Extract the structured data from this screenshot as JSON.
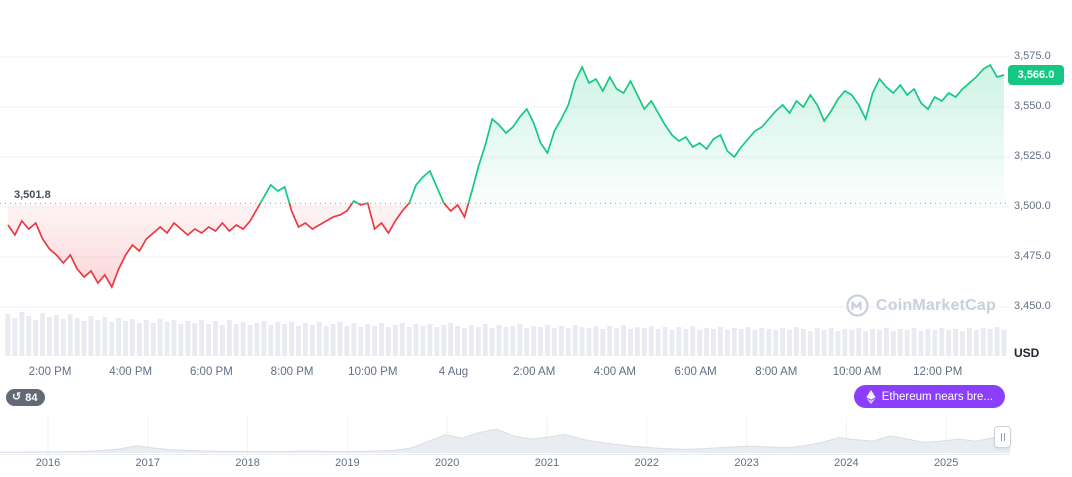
{
  "branding": {
    "watermark": "CoinMarketCap"
  },
  "badges": {
    "history_count": "84",
    "news_label": "Ethereum nears bre..."
  },
  "chart_data": {
    "type": "area",
    "title": "",
    "y_axis_unit": "USD",
    "baseline": 3501.8,
    "baseline_label": "3,501.8",
    "last_price": 3566.0,
    "last_price_label": "3,566.0",
    "ylim": [
      3445,
      3585
    ],
    "y_ticks": [
      3575,
      3550,
      3525,
      3500,
      3475,
      3450
    ],
    "y_tick_labels": [
      "3,575.0",
      "3,550.0",
      "3,525.0",
      "3,500.0",
      "3,475.0",
      "3,450.0"
    ],
    "x_tick_labels": [
      "2:00 PM",
      "4:00 PM",
      "6:00 PM",
      "8:00 PM",
      "10:00 PM",
      "4 Aug",
      "2:00 AM",
      "4:00 AM",
      "6:00 AM",
      "8:00 AM",
      "10:00 AM",
      "12:00 PM"
    ],
    "series": [
      {
        "name": "price",
        "values": [
          3491,
          3486,
          3493,
          3489,
          3492,
          3484,
          3479,
          3476,
          3472,
          3476,
          3469,
          3465,
          3468,
          3462,
          3466,
          3460,
          3469,
          3476,
          3481,
          3478,
          3484,
          3487,
          3490,
          3487,
          3492,
          3489,
          3486,
          3489,
          3487,
          3490,
          3488,
          3492,
          3488,
          3491,
          3489,
          3493,
          3499,
          3505,
          3511,
          3508,
          3510,
          3498,
          3490,
          3492,
          3489,
          3491,
          3493,
          3495,
          3496,
          3498,
          3503,
          3501,
          3502,
          3489,
          3492,
          3487,
          3493,
          3498,
          3502,
          3511,
          3515,
          3518,
          3510,
          3502,
          3498,
          3501,
          3495,
          3507,
          3520,
          3531,
          3544,
          3541,
          3537,
          3540,
          3545,
          3549,
          3542,
          3532,
          3527,
          3538,
          3544,
          3551,
          3563,
          3570,
          3562,
          3564,
          3558,
          3565,
          3559,
          3557,
          3563,
          3556,
          3549,
          3553,
          3547,
          3541,
          3536,
          3533,
          3535,
          3530,
          3532,
          3529,
          3534,
          3536,
          3528,
          3525,
          3530,
          3534,
          3538,
          3540,
          3544,
          3548,
          3551,
          3547,
          3553,
          3550,
          3556,
          3551,
          3543,
          3548,
          3554,
          3558,
          3556,
          3551,
          3544,
          3557,
          3564,
          3560,
          3557,
          3561,
          3556,
          3559,
          3552,
          3549,
          3555,
          3553,
          3557,
          3555,
          3559,
          3562,
          3565,
          3569,
          3571,
          3565,
          3566
        ]
      }
    ],
    "volume_relative": [
      42,
      38,
      44,
      40,
      36,
      43,
      39,
      41,
      37,
      42,
      38,
      35,
      40,
      36,
      39,
      34,
      38,
      35,
      37,
      33,
      36,
      33,
      37,
      34,
      36,
      32,
      35,
      33,
      36,
      32,
      35,
      31,
      36,
      32,
      34,
      31,
      33,
      35,
      31,
      34,
      32,
      34,
      30,
      33,
      31,
      34,
      30,
      32,
      34,
      30,
      33,
      29,
      32,
      30,
      33,
      29,
      31,
      33,
      29,
      32,
      30,
      32,
      29,
      31,
      33,
      30,
      28,
      31,
      29,
      32,
      28,
      31,
      29,
      30,
      32,
      28,
      30,
      29,
      31,
      28,
      30,
      28,
      31,
      29,
      28,
      30,
      27,
      30,
      28,
      31,
      27,
      29,
      28,
      30,
      27,
      29,
      26,
      29,
      27,
      30,
      26,
      28,
      27,
      29,
      26,
      28,
      27,
      29,
      26,
      28,
      27,
      26,
      28,
      26,
      29,
      27,
      25,
      28,
      26,
      28,
      25,
      27,
      26,
      28,
      25,
      27,
      26,
      28,
      25,
      27,
      26,
      28,
      25,
      27,
      26,
      28,
      26,
      27,
      25,
      28,
      26,
      28,
      27,
      29,
      26
    ],
    "navigator": {
      "year_labels": [
        "2016",
        "2017",
        "2018",
        "2019",
        "2020",
        "2021",
        "2022",
        "2023",
        "2024",
        "2025"
      ],
      "values": [
        0.02,
        0.02,
        0.03,
        0.03,
        0.04,
        0.05,
        0.08,
        0.12,
        0.22,
        0.15,
        0.1,
        0.08,
        0.06,
        0.05,
        0.05,
        0.04,
        0.04,
        0.05,
        0.06,
        0.05,
        0.04,
        0.05,
        0.06,
        0.08,
        0.15,
        0.35,
        0.55,
        0.45,
        0.62,
        0.72,
        0.52,
        0.42,
        0.48,
        0.56,
        0.42,
        0.32,
        0.26,
        0.2,
        0.16,
        0.13,
        0.11,
        0.13,
        0.16,
        0.19,
        0.21,
        0.18,
        0.16,
        0.22,
        0.32,
        0.46,
        0.4,
        0.36,
        0.52,
        0.42,
        0.32,
        0.36,
        0.42,
        0.36,
        0.46,
        0.55
      ]
    },
    "colors": {
      "up": "#16c784",
      "down": "#ea3943",
      "grid": "#eff2f5",
      "baseline_dots": "#98a1b3",
      "volume": "#e9ebf0",
      "axis_text": "#616e85",
      "watermark": "#c8d0dc",
      "badge_news": "#8a3ffc",
      "badge_history": "#636a76"
    }
  }
}
